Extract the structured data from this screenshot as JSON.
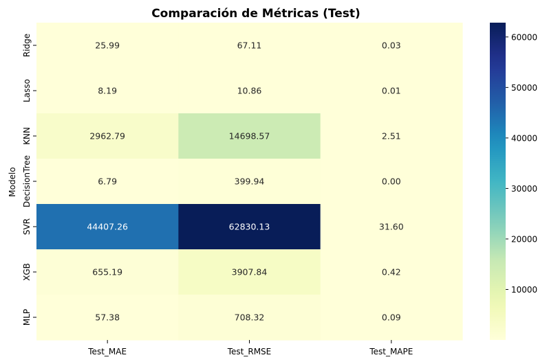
{
  "chart_data": {
    "type": "heatmap",
    "title": "Comparación de Métricas (Test)",
    "ylabel": "Modelo",
    "xlabel": "",
    "columns": [
      "Test_MAE",
      "Test_RMSE",
      "Test_MAPE"
    ],
    "rows": [
      "Ridge",
      "Lasso",
      "KNN",
      "DecisionTree",
      "SVR",
      "XGB",
      "MLP"
    ],
    "values": [
      [
        25.99,
        67.11,
        0.03
      ],
      [
        8.19,
        10.86,
        0.01
      ],
      [
        2962.79,
        14698.57,
        2.51
      ],
      [
        6.79,
        399.94,
        0.0
      ],
      [
        44407.26,
        62830.13,
        31.6
      ],
      [
        655.19,
        3907.84,
        0.42
      ],
      [
        57.38,
        708.32,
        0.09
      ]
    ],
    "value_labels": [
      [
        "25.99",
        "67.11",
        "0.03"
      ],
      [
        "8.19",
        "10.86",
        "0.01"
      ],
      [
        "2962.79",
        "14698.57",
        "2.51"
      ],
      [
        "6.79",
        "399.94",
        "0.00"
      ],
      [
        "44407.26",
        "62830.13",
        "31.60"
      ],
      [
        "655.19",
        "3907.84",
        "0.42"
      ],
      [
        "57.38",
        "708.32",
        "0.09"
      ]
    ],
    "colormap": "YlGnBu",
    "colorbar": {
      "range": [
        0,
        62830.13
      ],
      "ticks": [
        10000,
        20000,
        30000,
        40000,
        50000,
        60000
      ],
      "tick_labels": [
        "10000",
        "20000",
        "30000",
        "40000",
        "50000",
        "60000"
      ]
    }
  }
}
